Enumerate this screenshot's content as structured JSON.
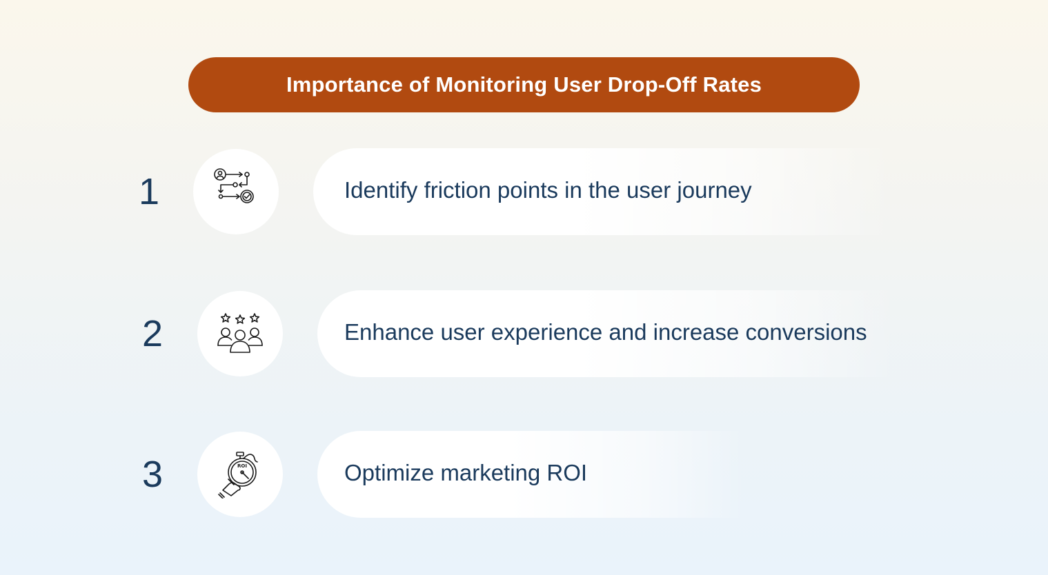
{
  "title": "Importance of Monitoring User Drop-Off Rates",
  "items": [
    {
      "number": "1",
      "text": "Identify friction points in the user journey",
      "icon": "user-journey-icon"
    },
    {
      "number": "2",
      "text": "Enhance user experience and increase conversions",
      "icon": "user-rating-stars-icon"
    },
    {
      "number": "3",
      "text": "Optimize marketing ROI",
      "icon": "roi-stopwatch-icon"
    }
  ],
  "icon_roi_label": "ROI",
  "colors": {
    "title_bg": "#b14a10",
    "title_text": "#ffffff",
    "body_text": "#1a3a5c",
    "card_bg": "#ffffff"
  }
}
